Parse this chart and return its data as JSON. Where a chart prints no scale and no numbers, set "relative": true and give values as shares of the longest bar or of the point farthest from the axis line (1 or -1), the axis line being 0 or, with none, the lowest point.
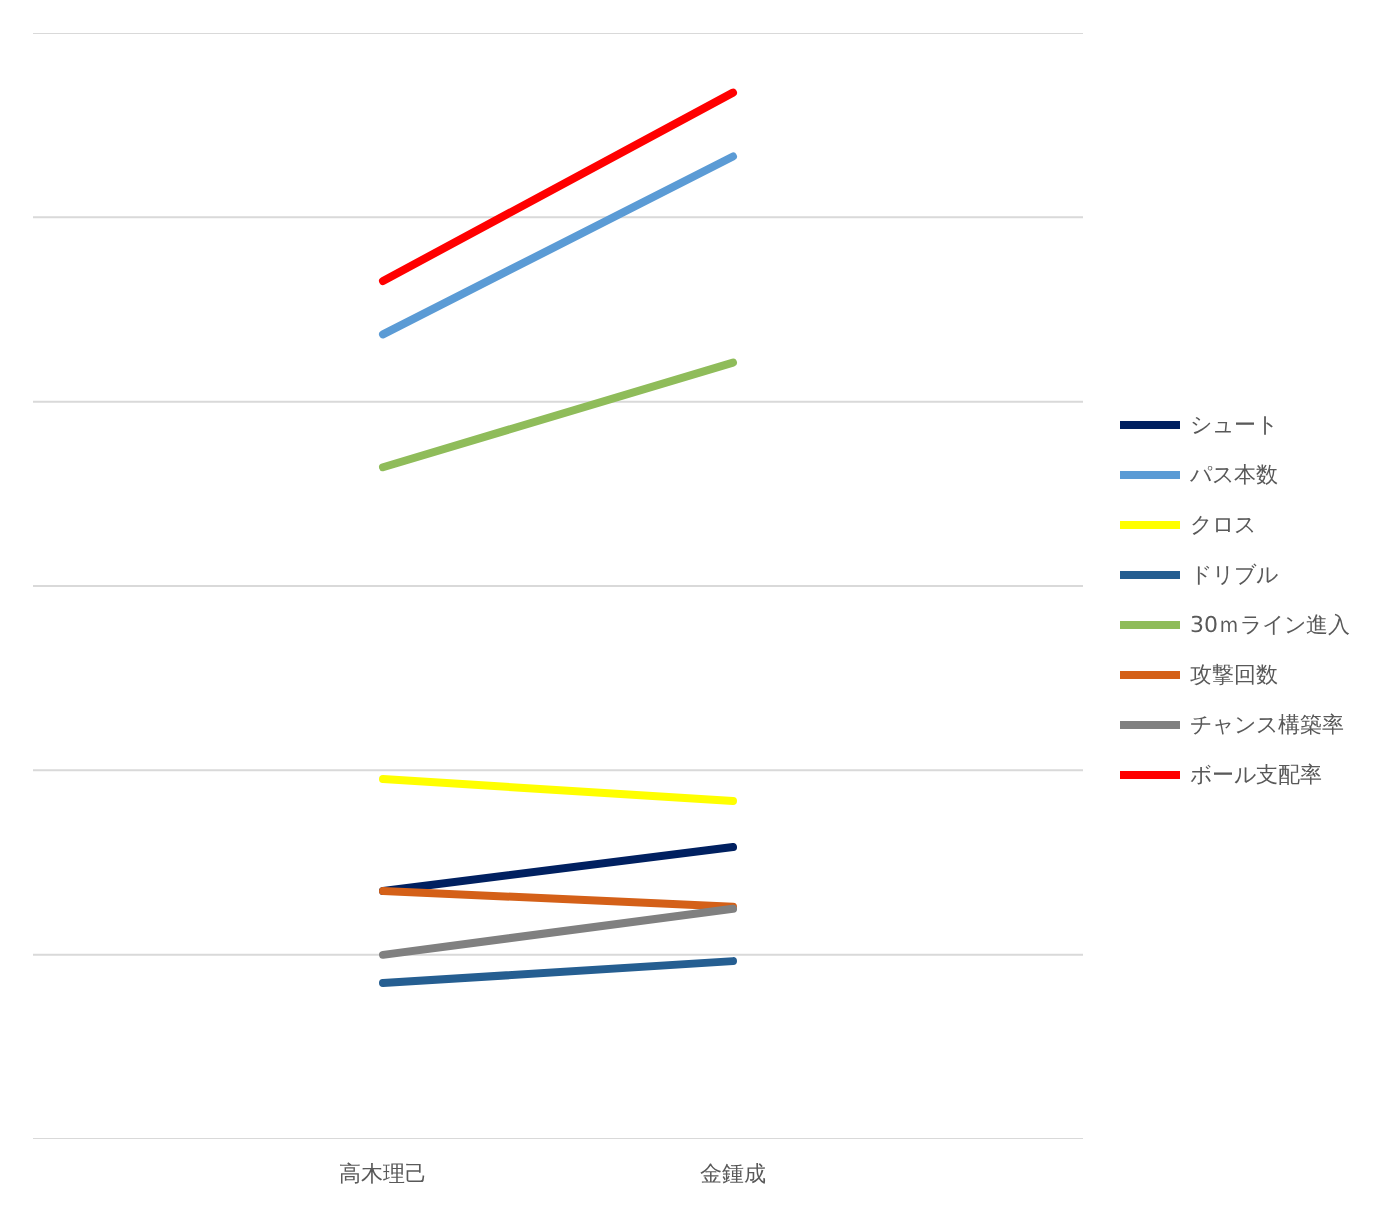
{
  "chart_data": {
    "type": "line",
    "relative": true,
    "categories": [
      "高木理己",
      "金鍾成"
    ],
    "grid": "y",
    "legend": "right",
    "marker": "none",
    "line_style": "solid",
    "series": [
      {
        "name": "シュート",
        "color": "#002060",
        "values": [
          0.237,
          0.279
        ]
      },
      {
        "name": "パス本数",
        "color": "#5b9bd5",
        "values": [
          0.769,
          0.939
        ]
      },
      {
        "name": "クロス",
        "color": "#ffff00",
        "values": [
          0.344,
          0.323
        ]
      },
      {
        "name": "ドリブル",
        "color": "#255e91",
        "values": [
          0.149,
          0.17
        ]
      },
      {
        "name": "30ｍライン進入",
        "color": "#8fbc5a",
        "values": [
          0.642,
          0.742
        ]
      },
      {
        "name": "攻撃回数",
        "color": "#d46018",
        "values": [
          0.237,
          0.222
        ]
      },
      {
        "name": "チャンス構築率",
        "color": "#808080",
        "values": [
          0.176,
          0.22
        ]
      },
      {
        "name": "ボール支配率",
        "color": "#ff0000",
        "values": [
          0.82,
          1
        ]
      }
    ]
  }
}
